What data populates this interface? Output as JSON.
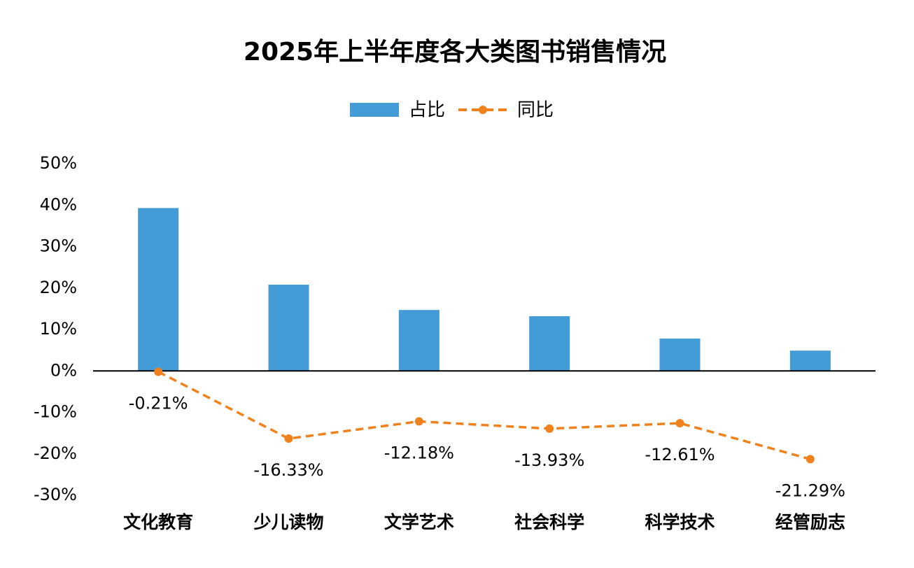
{
  "chart_data": {
    "type": "combo",
    "title": "2025年上半年度各大类图书销售情况",
    "categories": [
      "文化教育",
      "少儿读物",
      "文学艺术",
      "社会科学",
      "科学技术",
      "经管励志"
    ],
    "series": [
      {
        "name": "占比",
        "type": "bar",
        "color": "#449cd7",
        "values": [
          39.3,
          20.8,
          14.7,
          13.2,
          7.8,
          4.9
        ]
      },
      {
        "name": "同比",
        "type": "line",
        "color": "#f0821e",
        "values": [
          -0.21,
          -16.33,
          -12.18,
          -13.93,
          -12.61,
          -21.29
        ],
        "value_labels": [
          "-0.21%",
          "-16.33%",
          "-12.18%",
          "-13.93%",
          "-12.61%",
          "-21.29%"
        ]
      }
    ],
    "ylim": [
      -30,
      50
    ],
    "yticks": [
      {
        "value": -30,
        "label": "-30%"
      },
      {
        "value": -20,
        "label": "-20%"
      },
      {
        "value": -10,
        "label": "-10%"
      },
      {
        "value": 0,
        "label": "0%"
      },
      {
        "value": 10,
        "label": "10%"
      },
      {
        "value": 20,
        "label": "20%"
      },
      {
        "value": 30,
        "label": "30%"
      },
      {
        "value": 40,
        "label": "40%"
      },
      {
        "value": 50,
        "label": "50%"
      }
    ],
    "legend": "top"
  }
}
